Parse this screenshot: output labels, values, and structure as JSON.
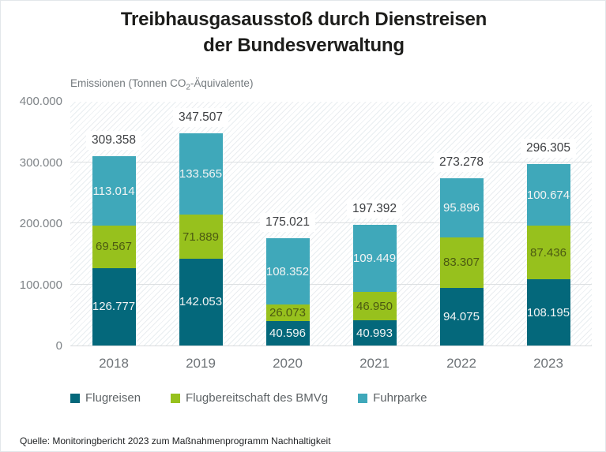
{
  "title": {
    "line1": "Treibhausgasausstoß durch Dienstreisen",
    "line2": "der Bundesverwaltung"
  },
  "subtitle": {
    "prefix": "Emissionen (Tonnen CO",
    "sub": "2",
    "suffix": "-Äquivalente)"
  },
  "chart_data": {
    "type": "bar",
    "stacked": true,
    "categories": [
      "2018",
      "2019",
      "2020",
      "2021",
      "2022",
      "2023"
    ],
    "series": [
      {
        "name": "Flugreisen",
        "color": "#04687b",
        "label_color": "#f2f4f4",
        "values": [
          126777,
          142053,
          40596,
          40993,
          94075,
          108195
        ],
        "labels": [
          "126.777",
          "142.053",
          "40.596",
          "40.993",
          "94.075",
          "108.195"
        ]
      },
      {
        "name": "Flugbereitschaft des BMVg",
        "color": "#97c11d",
        "label_color": "#4c5a12",
        "values": [
          69567,
          71889,
          26073,
          46950,
          83307,
          87436
        ],
        "labels": [
          "69.567",
          "71.889",
          "26.073",
          "46.950",
          "83.307",
          "87.436"
        ]
      },
      {
        "name": "Fuhrparke",
        "color": "#3fa8ba",
        "label_color": "#f2f4f4",
        "values": [
          113014,
          133565,
          108352,
          109449,
          95896,
          100674
        ],
        "labels": [
          "113.014",
          "133.565",
          "108.352",
          "109.449",
          "95.896",
          "100.674"
        ]
      }
    ],
    "totals": [
      309358,
      347507,
      175021,
      197392,
      273278,
      296305
    ],
    "total_labels": [
      "309.358",
      "347.507",
      "175.021",
      "197.392",
      "273.278",
      "296.305"
    ],
    "ylim": [
      0,
      400000
    ],
    "yticks": [
      {
        "value": 400000,
        "label": "400.000"
      },
      {
        "value": 300000,
        "label": "300.000"
      },
      {
        "value": 200000,
        "label": "200.000"
      },
      {
        "value": 100000,
        "label": "100.000"
      },
      {
        "value": 0,
        "label": "0"
      }
    ],
    "gridline_values": [
      100000,
      200000,
      300000
    ],
    "grid": true,
    "legend_position": "bottom"
  },
  "footer": {
    "source": "Quelle: Monitoringbericht 2023 zum Maßnahmenprogramm Nachhaltigkeit"
  }
}
